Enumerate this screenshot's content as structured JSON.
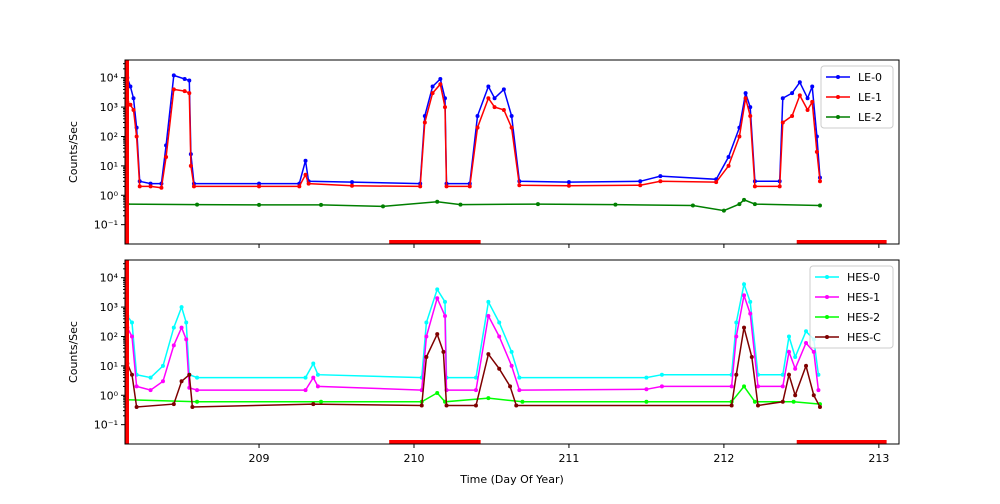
{
  "chart_data": [
    {
      "type": "line",
      "ylabel": "Counts/Sec",
      "yscale": "log",
      "ylim": [
        0.022,
        40000
      ],
      "xlim": [
        208.135,
        213.13
      ],
      "xticks": [
        209,
        210,
        211,
        212,
        213
      ],
      "xtick_labels_shown": false,
      "yticks": [
        {
          "v": 0.1,
          "label": "10⁻¹"
        },
        {
          "v": 1,
          "label": "10⁰"
        },
        {
          "v": 10,
          "label": "10¹"
        },
        {
          "v": 100,
          "label": "10²"
        },
        {
          "v": 1000,
          "label": "10³"
        },
        {
          "v": 10000,
          "label": "10⁴"
        }
      ],
      "legend": "top-right",
      "red_bars": [
        [
          208.135,
          208.16,
          "full"
        ],
        [
          209.84,
          210.43,
          "bottom"
        ],
        [
          212.47,
          213.05,
          "bottom"
        ]
      ],
      "series": [
        {
          "name": "LE-0",
          "color": "#0000ff",
          "points": [
            [
              208.15,
              10000
            ],
            [
              208.17,
              5000
            ],
            [
              208.19,
              2000
            ],
            [
              208.21,
              200
            ],
            [
              208.23,
              3
            ],
            [
              208.3,
              2.5
            ],
            [
              208.37,
              2.5
            ],
            [
              208.4,
              50
            ],
            [
              208.45,
              12000
            ],
            [
              208.52,
              9000
            ],
            [
              208.55,
              8000
            ],
            [
              208.56,
              25
            ],
            [
              208.58,
              2.5
            ],
            [
              209.0,
              2.5
            ],
            [
              209.26,
              2.5
            ],
            [
              209.3,
              15
            ],
            [
              209.32,
              3
            ],
            [
              209.6,
              2.8
            ],
            [
              210.04,
              2.5
            ],
            [
              210.07,
              500
            ],
            [
              210.12,
              5000
            ],
            [
              210.17,
              9000
            ],
            [
              210.2,
              2000
            ],
            [
              210.21,
              2.5
            ],
            [
              210.36,
              2.5
            ],
            [
              210.41,
              500
            ],
            [
              210.48,
              5000
            ],
            [
              210.52,
              2000
            ],
            [
              210.58,
              4000
            ],
            [
              210.63,
              500
            ],
            [
              210.68,
              3
            ],
            [
              211.0,
              2.8
            ],
            [
              211.46,
              3
            ],
            [
              211.59,
              4.5
            ],
            [
              211.95,
              3.5
            ],
            [
              212.03,
              20
            ],
            [
              212.1,
              200
            ],
            [
              212.14,
              3000
            ],
            [
              212.17,
              1000
            ],
            [
              212.2,
              3
            ],
            [
              212.36,
              3
            ],
            [
              212.38,
              2000
            ],
            [
              212.44,
              3000
            ],
            [
              212.49,
              7000
            ],
            [
              212.54,
              2000
            ],
            [
              212.57,
              5000
            ],
            [
              212.6,
              100
            ],
            [
              212.62,
              4
            ]
          ]
        },
        {
          "name": "LE-1",
          "color": "#ff0000",
          "points": [
            [
              208.15,
              1500
            ],
            [
              208.17,
              1200
            ],
            [
              208.19,
              800
            ],
            [
              208.21,
              100
            ],
            [
              208.23,
              2
            ],
            [
              208.3,
              2
            ],
            [
              208.37,
              1.8
            ],
            [
              208.4,
              20
            ],
            [
              208.45,
              4000
            ],
            [
              208.52,
              3500
            ],
            [
              208.55,
              3000
            ],
            [
              208.56,
              10
            ],
            [
              208.58,
              2
            ],
            [
              209.0,
              2
            ],
            [
              209.26,
              2
            ],
            [
              209.3,
              5
            ],
            [
              209.32,
              2.5
            ],
            [
              209.6,
              2.1
            ],
            [
              210.04,
              2
            ],
            [
              210.07,
              300
            ],
            [
              210.12,
              3000
            ],
            [
              210.17,
              6000
            ],
            [
              210.2,
              1000
            ],
            [
              210.21,
              2
            ],
            [
              210.36,
              2
            ],
            [
              210.41,
              200
            ],
            [
              210.48,
              2000
            ],
            [
              210.52,
              1000
            ],
            [
              210.58,
              800
            ],
            [
              210.63,
              200
            ],
            [
              210.68,
              2.2
            ],
            [
              211.0,
              2.1
            ],
            [
              211.46,
              2.2
            ],
            [
              211.59,
              3
            ],
            [
              211.95,
              2.8
            ],
            [
              212.03,
              10
            ],
            [
              212.1,
              100
            ],
            [
              212.14,
              2000
            ],
            [
              212.17,
              500
            ],
            [
              212.2,
              2
            ],
            [
              212.36,
              2
            ],
            [
              212.38,
              300
            ],
            [
              212.44,
              500
            ],
            [
              212.49,
              2500
            ],
            [
              212.54,
              800
            ],
            [
              212.57,
              1500
            ],
            [
              212.6,
              30
            ],
            [
              212.62,
              3
            ]
          ]
        },
        {
          "name": "LE-2",
          "color": "#007f00",
          "points": [
            [
              208.15,
              0.5
            ],
            [
              208.6,
              0.48
            ],
            [
              209.0,
              0.47
            ],
            [
              209.4,
              0.47
            ],
            [
              209.8,
              0.42
            ],
            [
              210.15,
              0.6
            ],
            [
              210.3,
              0.48
            ],
            [
              210.8,
              0.5
            ],
            [
              211.3,
              0.48
            ],
            [
              211.8,
              0.45
            ],
            [
              212.0,
              0.3
            ],
            [
              212.1,
              0.5
            ],
            [
              212.13,
              0.7
            ],
            [
              212.2,
              0.5
            ],
            [
              212.62,
              0.45
            ]
          ]
        }
      ]
    },
    {
      "type": "line",
      "ylabel": "Counts/Sec",
      "xlabel": "Time (Day Of Year)",
      "yscale": "log",
      "ylim": [
        0.022,
        40000
      ],
      "xlim": [
        208.135,
        213.13
      ],
      "xticks": [
        209,
        210,
        211,
        212,
        213
      ],
      "yticks": [
        {
          "v": 0.1,
          "label": "10⁻¹"
        },
        {
          "v": 1,
          "label": "10⁰"
        },
        {
          "v": 10,
          "label": "10¹"
        },
        {
          "v": 100,
          "label": "10²"
        },
        {
          "v": 1000,
          "label": "10³"
        },
        {
          "v": 10000,
          "label": "10⁴"
        }
      ],
      "legend": "top-right",
      "red_bars": [
        [
          208.135,
          208.16,
          "full"
        ],
        [
          209.84,
          210.43,
          "bottom"
        ],
        [
          212.47,
          213.05,
          "bottom"
        ]
      ],
      "series": [
        {
          "name": "HES-0",
          "color": "#00ffff",
          "points": [
            [
              208.15,
              500
            ],
            [
              208.18,
              300
            ],
            [
              208.21,
              5
            ],
            [
              208.3,
              4
            ],
            [
              208.38,
              10
            ],
            [
              208.45,
              200
            ],
            [
              208.5,
              1000
            ],
            [
              208.53,
              300
            ],
            [
              208.55,
              5
            ],
            [
              208.6,
              4
            ],
            [
              209.3,
              4
            ],
            [
              209.35,
              12
            ],
            [
              209.38,
              5
            ],
            [
              210.05,
              4
            ],
            [
              210.08,
              300
            ],
            [
              210.15,
              4000
            ],
            [
              210.2,
              1500
            ],
            [
              210.21,
              4
            ],
            [
              210.4,
              4
            ],
            [
              210.48,
              1500
            ],
            [
              210.55,
              300
            ],
            [
              210.63,
              30
            ],
            [
              210.68,
              4
            ],
            [
              211.5,
              4
            ],
            [
              211.6,
              5
            ],
            [
              212.05,
              5
            ],
            [
              212.08,
              300
            ],
            [
              212.13,
              6000
            ],
            [
              212.17,
              1500
            ],
            [
              212.22,
              5
            ],
            [
              212.38,
              5
            ],
            [
              212.42,
              100
            ],
            [
              212.46,
              20
            ],
            [
              212.53,
              150
            ],
            [
              212.58,
              80
            ],
            [
              212.61,
              5
            ]
          ]
        },
        {
          "name": "HES-1",
          "color": "#ff00ff",
          "points": [
            [
              208.15,
              200
            ],
            [
              208.18,
              100
            ],
            [
              208.21,
              2
            ],
            [
              208.3,
              1.5
            ],
            [
              208.38,
              3
            ],
            [
              208.45,
              50
            ],
            [
              208.5,
              200
            ],
            [
              208.53,
              80
            ],
            [
              208.55,
              1.8
            ],
            [
              208.6,
              1.5
            ],
            [
              209.3,
              1.5
            ],
            [
              209.35,
              4
            ],
            [
              209.38,
              2
            ],
            [
              210.05,
              1.5
            ],
            [
              210.08,
              100
            ],
            [
              210.15,
              2000
            ],
            [
              210.2,
              500
            ],
            [
              210.21,
              1.5
            ],
            [
              210.4,
              1.5
            ],
            [
              210.48,
              500
            ],
            [
              210.55,
              100
            ],
            [
              210.63,
              10
            ],
            [
              210.68,
              1.5
            ],
            [
              211.5,
              1.6
            ],
            [
              211.6,
              2
            ],
            [
              212.05,
              2
            ],
            [
              212.08,
              100
            ],
            [
              212.13,
              2500
            ],
            [
              212.17,
              600
            ],
            [
              212.22,
              2
            ],
            [
              212.38,
              2
            ],
            [
              212.42,
              30
            ],
            [
              212.46,
              8
            ],
            [
              212.53,
              60
            ],
            [
              212.58,
              30
            ],
            [
              212.61,
              1.5
            ]
          ]
        },
        {
          "name": "HES-2",
          "color": "#00ff00",
          "points": [
            [
              208.15,
              0.7
            ],
            [
              208.6,
              0.6
            ],
            [
              209.4,
              0.6
            ],
            [
              210.05,
              0.6
            ],
            [
              210.15,
              1.2
            ],
            [
              210.2,
              0.6
            ],
            [
              210.48,
              0.8
            ],
            [
              210.7,
              0.6
            ],
            [
              211.5,
              0.6
            ],
            [
              212.05,
              0.6
            ],
            [
              212.13,
              2
            ],
            [
              212.2,
              0.6
            ],
            [
              212.45,
              0.6
            ],
            [
              212.62,
              0.5
            ]
          ]
        },
        {
          "name": "HES-C",
          "color": "#7f0000",
          "points": [
            [
              208.15,
              12
            ],
            [
              208.18,
              5
            ],
            [
              208.21,
              0.4
            ],
            [
              208.45,
              0.5
            ],
            [
              208.5,
              3
            ],
            [
              208.55,
              5
            ],
            [
              208.57,
              0.4
            ],
            [
              209.35,
              0.5
            ],
            [
              210.05,
              0.45
            ],
            [
              210.08,
              20
            ],
            [
              210.15,
              120
            ],
            [
              210.19,
              30
            ],
            [
              210.21,
              0.45
            ],
            [
              210.4,
              0.45
            ],
            [
              210.48,
              25
            ],
            [
              210.55,
              8
            ],
            [
              210.62,
              2
            ],
            [
              210.66,
              0.45
            ],
            [
              212.05,
              0.45
            ],
            [
              212.08,
              5
            ],
            [
              212.13,
              200
            ],
            [
              212.18,
              20
            ],
            [
              212.22,
              0.45
            ],
            [
              212.38,
              0.6
            ],
            [
              212.42,
              5
            ],
            [
              212.46,
              1
            ],
            [
              212.53,
              10
            ],
            [
              212.58,
              1
            ],
            [
              212.62,
              0.4
            ]
          ]
        }
      ]
    }
  ]
}
